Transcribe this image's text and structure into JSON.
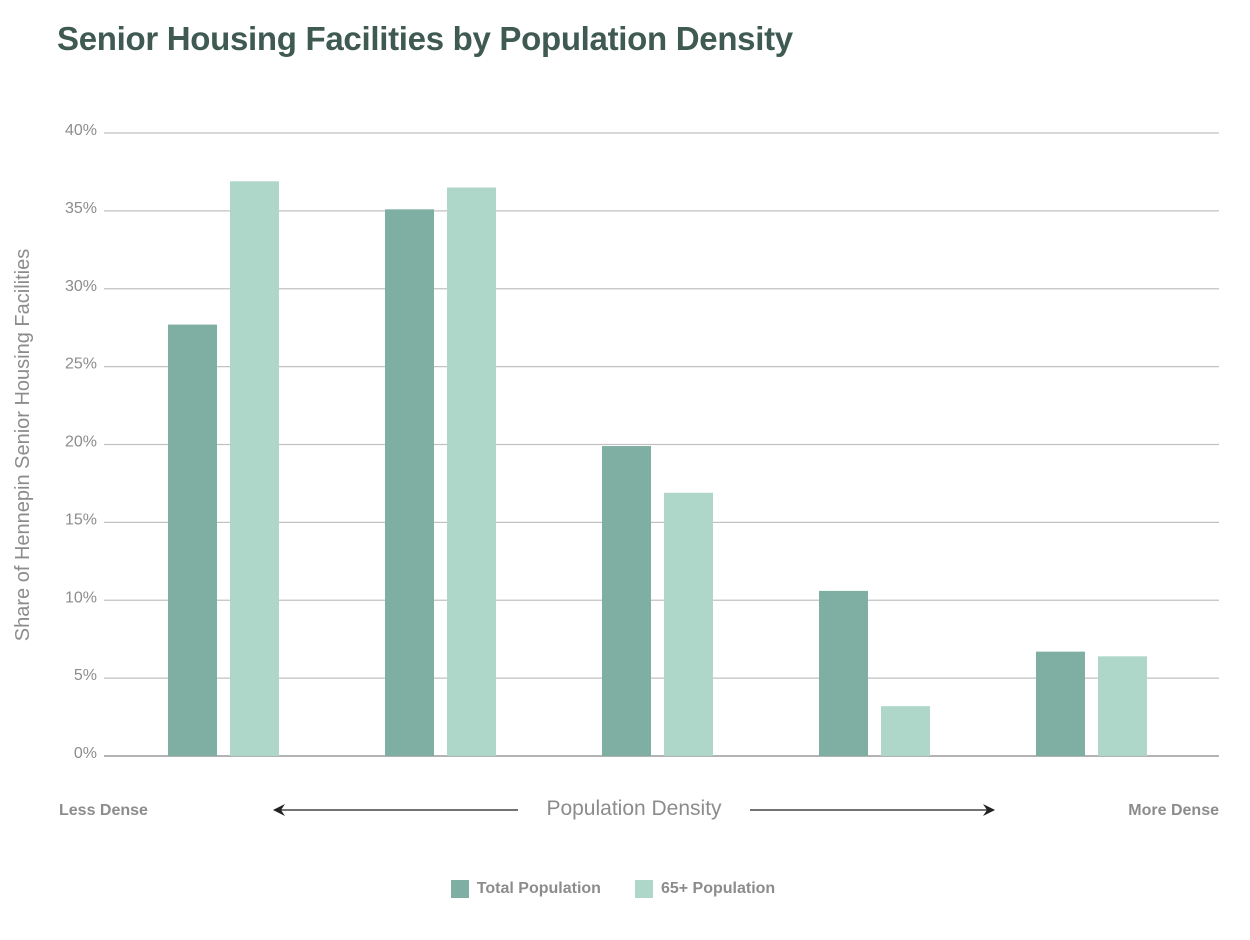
{
  "page": {
    "title": "Senior Housing Facilities by Population Density"
  },
  "legend": {
    "items": [
      {
        "label": "Total Population",
        "color": "#7fafa3"
      },
      {
        "label": "65+ Population",
        "color": "#aed6c9"
      }
    ]
  },
  "colors": {
    "title": "#3f5a52",
    "grid": "#c2c2c2",
    "axis_text": "#8c8c8c",
    "arrow": "#222222"
  },
  "chart_data": {
    "type": "bar",
    "title": "Senior Housing Facilities by Population Density",
    "ylabel": "Share of Hennepin Senior Housing Facilities",
    "xlabel": "Population Density",
    "x_annotations": {
      "left": "Less Dense",
      "right": "More Dense"
    },
    "categories": [
      "",
      "",
      "",
      "",
      ""
    ],
    "ylim": [
      0,
      40
    ],
    "yticks": [
      0,
      5,
      10,
      15,
      20,
      25,
      30,
      35,
      40
    ],
    "ytick_labels": [
      "0%",
      "5%",
      "10%",
      "15%",
      "20%",
      "25%",
      "30%",
      "35%",
      "40%"
    ],
    "grid": true,
    "legend_position": "bottom-center",
    "series": [
      {
        "name": "Total Population",
        "color": "#7fafa3",
        "values": [
          27.7,
          35.1,
          19.9,
          10.6,
          6.7
        ]
      },
      {
        "name": "65+ Population",
        "color": "#aed6c9",
        "values": [
          36.9,
          36.5,
          16.9,
          3.2,
          6.4
        ]
      }
    ]
  }
}
